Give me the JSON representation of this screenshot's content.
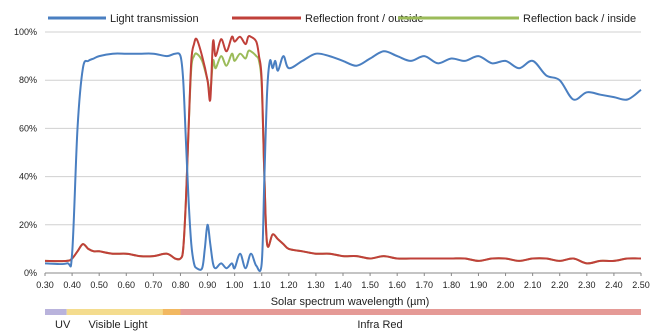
{
  "chart_data": {
    "type": "line",
    "title": "",
    "xlabel": "Solar spectrum wavelength (µm)",
    "ylabel": "",
    "xlim": [
      0.3,
      2.5
    ],
    "ylim": [
      0,
      100
    ],
    "x_ticks": [
      "0.30",
      "0.40",
      "0.50",
      "0.60",
      "0.70",
      "0.80",
      "0.90",
      "1.00",
      "1.10",
      "1.20",
      "1.30",
      "1.40",
      "1.50",
      "1.60",
      "1.70",
      "1.80",
      "1.90",
      "2.00",
      "2.10",
      "2.20",
      "2.30",
      "2.40",
      "2.50"
    ],
    "y_ticks": [
      "0%",
      "20%",
      "40%",
      "60%",
      "80%",
      "100%"
    ],
    "grid": true,
    "legend_position": "top",
    "series": [
      {
        "name": "Light transmission",
        "color": "#4a7fc1",
        "x": [
          0.3,
          0.38,
          0.4,
          0.42,
          0.44,
          0.46,
          0.48,
          0.5,
          0.55,
          0.6,
          0.65,
          0.7,
          0.75,
          0.78,
          0.8,
          0.81,
          0.82,
          0.83,
          0.84,
          0.85,
          0.86,
          0.88,
          0.89,
          0.9,
          0.91,
          0.92,
          0.93,
          0.95,
          0.97,
          0.99,
          1.0,
          1.02,
          1.04,
          1.06,
          1.08,
          1.1,
          1.11,
          1.12,
          1.13,
          1.14,
          1.15,
          1.16,
          1.18,
          1.2,
          1.25,
          1.3,
          1.35,
          1.4,
          1.45,
          1.5,
          1.55,
          1.6,
          1.65,
          1.7,
          1.75,
          1.8,
          1.85,
          1.9,
          1.95,
          2.0,
          2.05,
          2.1,
          2.15,
          2.2,
          2.25,
          2.3,
          2.35,
          2.4,
          2.45,
          2.5
        ],
        "y": [
          4,
          4,
          8,
          60,
          85,
          88,
          89,
          90,
          91,
          91,
          91,
          91,
          90,
          91,
          90,
          80,
          55,
          30,
          12,
          4,
          2,
          2,
          10,
          20,
          12,
          4,
          2,
          4,
          2,
          4,
          2,
          8,
          2,
          8,
          3,
          4,
          40,
          75,
          88,
          85,
          88,
          84,
          90,
          85,
          88,
          91,
          90,
          88,
          86,
          89,
          92,
          90,
          88,
          90,
          87,
          89,
          88,
          90,
          87,
          88,
          85,
          88,
          82,
          80,
          72,
          75,
          74,
          73,
          72,
          76
        ]
      },
      {
        "name": "Reflection front / outside",
        "color": "#c0403a",
        "x": [
          0.3,
          0.38,
          0.4,
          0.42,
          0.44,
          0.46,
          0.48,
          0.5,
          0.55,
          0.6,
          0.65,
          0.7,
          0.75,
          0.78,
          0.8,
          0.81,
          0.82,
          0.83,
          0.84,
          0.85,
          0.86,
          0.88,
          0.9,
          0.91,
          0.92,
          0.93,
          0.95,
          0.97,
          0.99,
          1.0,
          1.02,
          1.04,
          1.05,
          1.06,
          1.08,
          1.09,
          1.1,
          1.11,
          1.12,
          1.14,
          1.16,
          1.18,
          1.2,
          1.25,
          1.3,
          1.35,
          1.4,
          1.45,
          1.5,
          1.55,
          1.6,
          1.65,
          1.7,
          1.75,
          1.8,
          1.85,
          1.9,
          1.95,
          2.0,
          2.05,
          2.1,
          2.15,
          2.2,
          2.25,
          2.3,
          2.35,
          2.4,
          2.45,
          2.5
        ],
        "y": [
          5,
          5,
          6,
          9,
          12,
          10,
          9,
          9,
          8,
          8,
          7,
          7,
          8,
          6,
          6,
          10,
          30,
          60,
          88,
          95,
          97,
          90,
          80,
          72,
          96,
          90,
          97,
          92,
          98,
          96,
          98,
          95,
          98,
          98,
          96,
          90,
          80,
          40,
          12,
          16,
          14,
          12,
          10,
          9,
          8,
          8,
          7,
          7,
          6,
          7,
          6,
          6,
          6,
          6,
          6,
          6,
          5,
          6,
          6,
          5,
          6,
          6,
          5,
          6,
          4,
          5,
          5,
          6,
          6
        ]
      },
      {
        "name": "Reflection back / inside",
        "color": "#9bbb59",
        "x": [
          0.3,
          0.38,
          0.4,
          0.42,
          0.44,
          0.46,
          0.48,
          0.5,
          0.55,
          0.6,
          0.65,
          0.7,
          0.75,
          0.78,
          0.8,
          0.81,
          0.82,
          0.83,
          0.84,
          0.85,
          0.86,
          0.88,
          0.9,
          0.91,
          0.92,
          0.93,
          0.95,
          0.97,
          0.99,
          1.0,
          1.02,
          1.04,
          1.05,
          1.06,
          1.08,
          1.09,
          1.1,
          1.11,
          1.12,
          1.14,
          1.16,
          1.18,
          1.2,
          1.25,
          1.3,
          1.35,
          1.4,
          1.45,
          1.5,
          1.55,
          1.6,
          1.65,
          1.7,
          1.75,
          1.8,
          1.85,
          1.9,
          1.95,
          2.0,
          2.05,
          2.1,
          2.15,
          2.2,
          2.25,
          2.3,
          2.35,
          2.4,
          2.45,
          2.5
        ],
        "y": [
          5,
          5,
          6,
          9,
          12,
          10,
          9,
          9,
          8,
          8,
          7,
          7,
          8,
          6,
          6,
          10,
          30,
          60,
          85,
          90,
          91,
          88,
          80,
          75,
          88,
          85,
          90,
          86,
          91,
          88,
          91,
          89,
          92,
          92,
          90,
          88,
          78,
          40,
          12,
          16,
          14,
          12,
          10,
          9,
          8,
          8,
          7,
          7,
          6,
          7,
          6,
          6,
          6,
          6,
          6,
          6,
          5,
          6,
          6,
          5,
          6,
          6,
          5,
          6,
          4,
          5,
          5,
          6,
          6
        ]
      }
    ],
    "bands": [
      {
        "label": "UV",
        "color": "#b9b3dc",
        "from": 0.3,
        "to": 0.38
      },
      {
        "label": "Visible Light",
        "color": "#f4dc8e",
        "from": 0.38,
        "to": 0.78
      },
      {
        "label": "Infra Red",
        "color": "#e59a96",
        "from": 0.78,
        "to": 2.5
      }
    ],
    "visible_light_edge_colors": [
      "#f2b861"
    ]
  }
}
